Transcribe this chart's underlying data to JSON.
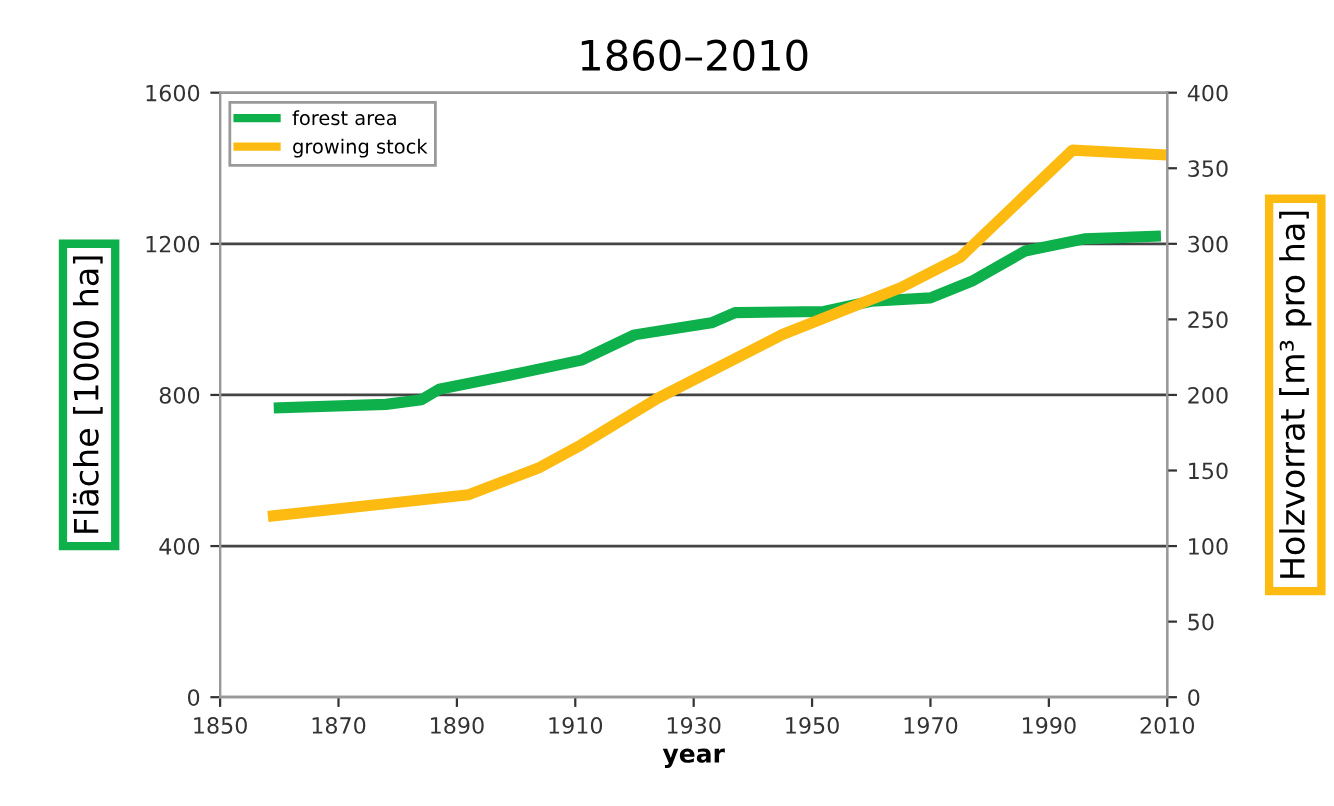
{
  "chart_data": {
    "type": "line",
    "title": "1860–2010",
    "xlabel": "year",
    "ylabel": "Fläche [1000 ha]",
    "y2label": "Holzvorrat [m³ pro ha]",
    "xlim": [
      1850,
      2010
    ],
    "xticks": [
      1850,
      1870,
      1890,
      1910,
      1930,
      1950,
      1970,
      1990,
      2010
    ],
    "ylim": [
      0,
      1600
    ],
    "yticks": [
      0,
      400,
      800,
      1200,
      1600
    ],
    "y2lim": [
      0,
      400
    ],
    "y2ticks": [
      0,
      50,
      100,
      150,
      200,
      250,
      300,
      350,
      400
    ],
    "grid": "y",
    "legend": "top left",
    "line_style": "solid",
    "marker": "none",
    "series": [
      {
        "name": "forest area",
        "color": "#0db04b",
        "x": [
          1860,
          1878,
          1884,
          1887,
          1901,
          1911,
          1920,
          1933,
          1937,
          1952,
          1960,
          1970,
          1977,
          1986,
          1996,
          2008
        ],
        "values": [
          766,
          775,
          787,
          815,
          859,
          892,
          959,
          991,
          1018,
          1021,
          1048,
          1057,
          1101,
          1181,
          1213,
          1220
        ]
      },
      {
        "name": "growing stock",
        "color": "#fdbb12",
        "axis": "y2",
        "x": [
          1859,
          1892,
          1904,
          1911,
          1924,
          1945,
          1965,
          1975,
          1994,
          2009
        ],
        "values": [
          120,
          134,
          152,
          167,
          198,
          240,
          271,
          291,
          362,
          359
        ]
      }
    ]
  }
}
